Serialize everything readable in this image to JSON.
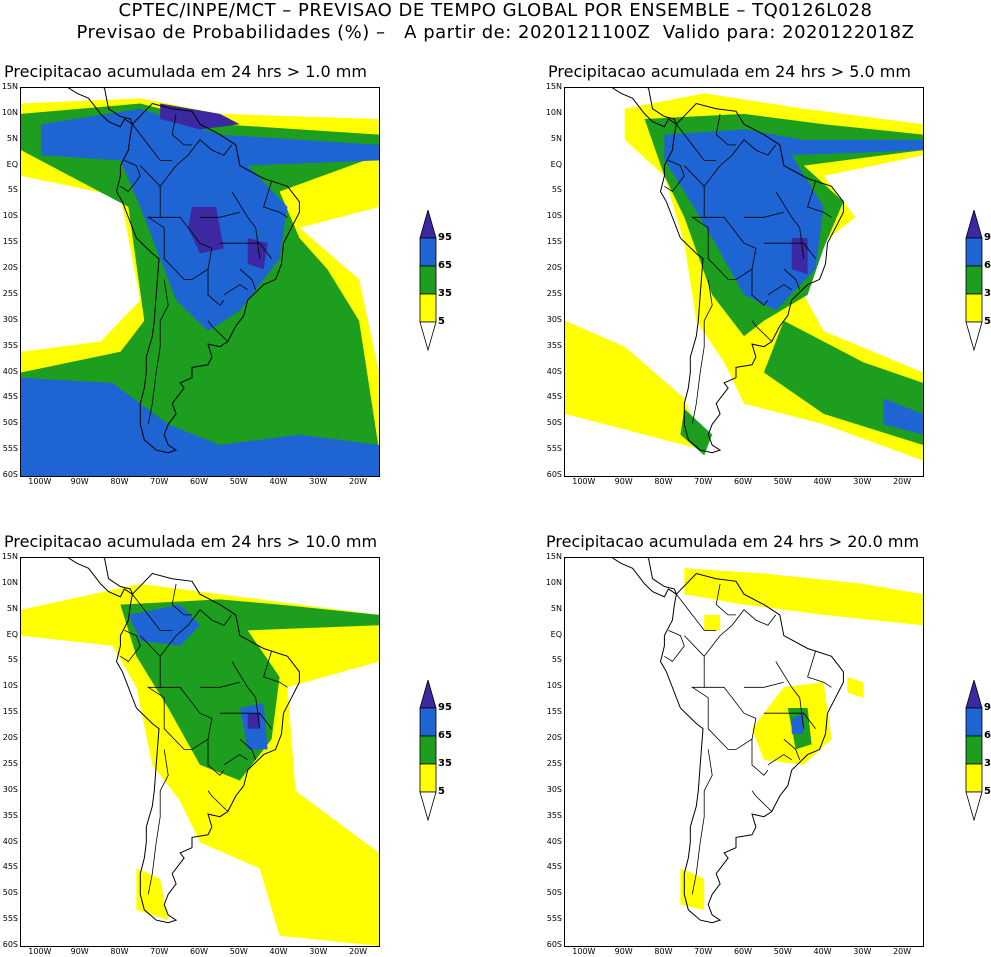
{
  "header": {
    "line1": "CPTEC/INPE/MCT – PREVISAO DE TEMPO GLOBAL POR ENSEMBLE – TQ0126L028",
    "line2": "Previsao de Probabilidades (%) –   A partir de: 2020121100Z  Valido para: 2020122018Z"
  },
  "colors": {
    "yellow": "#ffff00",
    "green": "#1e9e1e",
    "blue": "#1e64d2",
    "dark_blue": "#3c28a0",
    "coast": "#000000"
  },
  "axes": {
    "lat_labels": [
      "15N",
      "10N",
      "5N",
      "EQ",
      "5S",
      "10S",
      "15S",
      "20S",
      "25S",
      "30S",
      "35S",
      "40S",
      "45S",
      "50S",
      "55S",
      "60S"
    ],
    "lon_labels": [
      "100W",
      "90W",
      "80W",
      "70W",
      "60W",
      "50W",
      "40W",
      "30W",
      "20W"
    ]
  },
  "legend": {
    "labels": [
      "95",
      "65",
      "35",
      "5"
    ]
  },
  "panels": [
    {
      "title": "Precipitacao acumulada em 24 hrs > 1.0 mm"
    },
    {
      "title": "Precipitacao acumulada em 24 hrs > 5.0 mm"
    },
    {
      "title": "Precipitacao acumulada em 24 hrs > 10.0 mm"
    },
    {
      "title": "Precipitacao acumulada em 24 hrs > 20.0 mm"
    }
  ]
}
